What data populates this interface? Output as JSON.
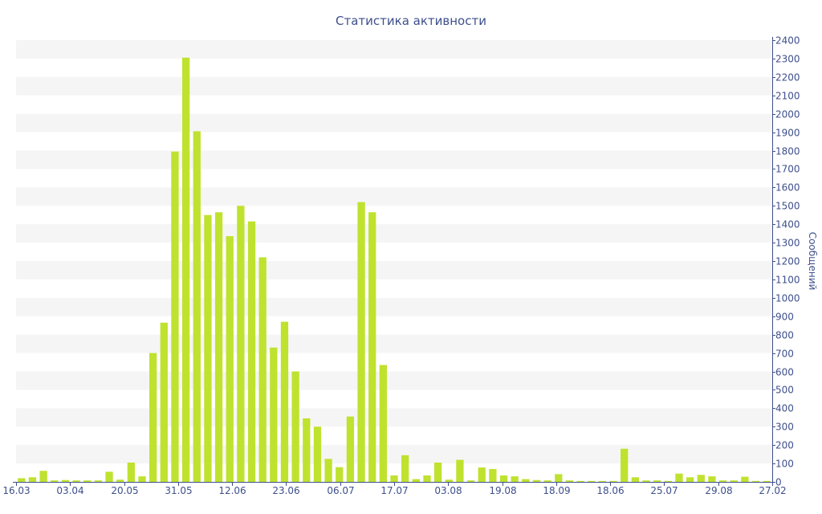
{
  "chart_data": {
    "type": "bar",
    "title": "Статистика активности",
    "xlabel": "",
    "ylabel": "Сообщений",
    "ylim": [
      0,
      2400
    ],
    "ytick_step": 100,
    "y_axis_side": "right",
    "grid": "alternating horizontal bands",
    "colors": {
      "bar": "#bfe22f",
      "text": "#3e4f8c",
      "band": "#f5f5f5",
      "axis": "#3e4f8c"
    },
    "x_tick_labels": [
      "16.03",
      "03.04",
      "20.05",
      "31.05",
      "12.06",
      "23.06",
      "06.07",
      "17.07",
      "03.08",
      "19.08",
      "18.09",
      "18.06",
      "25.07",
      "29.08",
      "27.02"
    ],
    "series": [
      {
        "values": [
          20,
          25,
          60,
          8,
          10,
          8,
          8,
          8,
          55,
          12,
          105,
          30,
          700,
          865,
          1795,
          2305,
          1905,
          1450,
          1465,
          1335,
          1500,
          1415,
          1220,
          730,
          870,
          600,
          345,
          300,
          125,
          80,
          355,
          1520,
          1465,
          635,
          35,
          145,
          15,
          35,
          105,
          12,
          120,
          8,
          78,
          70,
          35,
          30,
          15,
          10,
          8,
          42,
          8,
          5,
          5,
          5,
          5,
          180,
          25,
          8,
          8,
          5,
          45,
          25,
          38,
          30,
          8,
          8,
          28,
          5,
          5
        ]
      }
    ]
  }
}
